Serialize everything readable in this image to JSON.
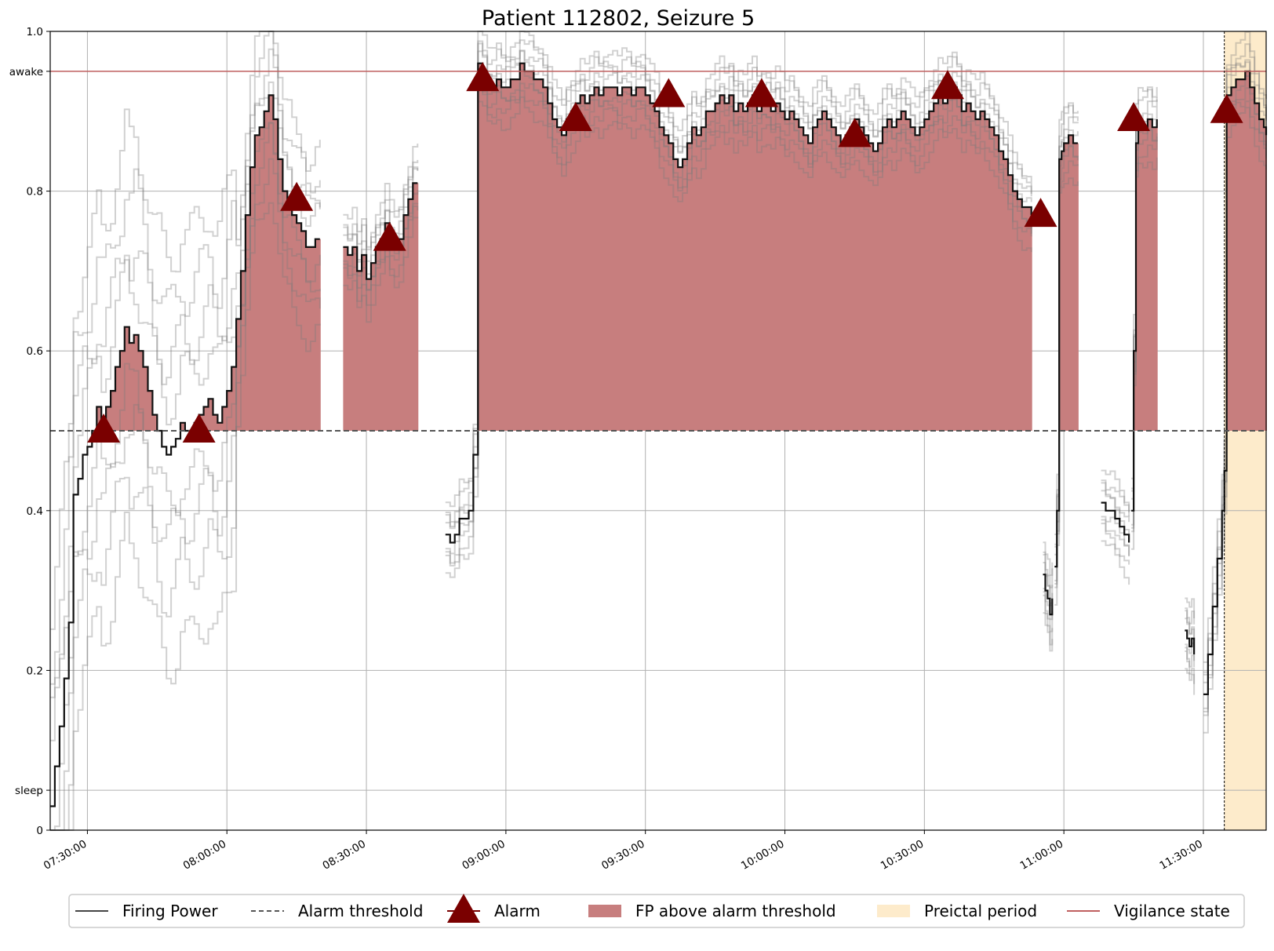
{
  "chart_data": {
    "type": "line",
    "title": "Patient 112802, Seizure 5",
    "xlabel": "",
    "ylabel": "",
    "x_start": "07:22:00",
    "x_end": "11:43:30",
    "ylim": [
      0,
      1.0
    ],
    "grid": true,
    "legend_placement": "bottom-center",
    "x_ticks": [
      "07:30:00",
      "08:00:00",
      "08:30:00",
      "09:00:00",
      "09:30:00",
      "10:00:00",
      "10:30:00",
      "11:00:00",
      "11:30:00"
    ],
    "y_ticks": [
      {
        "value": 0,
        "label": "0"
      },
      {
        "value": 0.05,
        "label": "sleep"
      },
      {
        "value": 0.2,
        "label": "0.2"
      },
      {
        "value": 0.4,
        "label": "0.4"
      },
      {
        "value": 0.6,
        "label": "0.6"
      },
      {
        "value": 0.8,
        "label": "0.8"
      },
      {
        "value": 0.95,
        "label": "awake"
      },
      {
        "value": 1.0,
        "label": "1.0"
      }
    ],
    "alarm_threshold": 0.5,
    "vigilance_state": [
      {
        "start": "07:22:00",
        "end": "11:43:30",
        "state": "awake"
      }
    ],
    "preictal_period": {
      "start": "11:34:30",
      "end": "11:43:30"
    },
    "firing_power_segments": [
      {
        "times": [
          "07:22:00",
          "07:23:00",
          "07:24:00",
          "07:25:00",
          "07:26:00",
          "07:27:00",
          "07:28:00",
          "07:29:00",
          "07:30:00",
          "07:31:00",
          "07:32:00",
          "07:33:00",
          "07:34:00",
          "07:35:00",
          "07:36:00",
          "07:37:00",
          "07:38:00",
          "07:39:00",
          "07:40:00",
          "07:41:00",
          "07:42:00",
          "07:43:00",
          "07:44:00",
          "07:45:00",
          "07:46:00",
          "07:47:00",
          "07:48:00",
          "07:49:00",
          "07:50:00",
          "07:51:00",
          "07:52:00",
          "07:53:00",
          "07:54:00",
          "07:55:00",
          "07:56:00",
          "07:57:00",
          "07:58:00",
          "07:59:00",
          "08:00:00",
          "08:01:00",
          "08:02:00",
          "08:03:00",
          "08:04:00",
          "08:05:00",
          "08:06:00",
          "08:07:00",
          "08:08:00",
          "08:09:00",
          "08:10:00",
          "08:11:00",
          "08:12:00",
          "08:13:00",
          "08:14:00",
          "08:15:00",
          "08:16:00",
          "08:17:00",
          "08:18:00",
          "08:19:00",
          "08:20:00"
        ],
        "values": [
          0.03,
          0.08,
          0.13,
          0.19,
          0.26,
          0.42,
          0.44,
          0.47,
          0.48,
          0.5,
          0.53,
          0.51,
          0.53,
          0.55,
          0.58,
          0.6,
          0.63,
          0.61,
          0.62,
          0.6,
          0.58,
          0.55,
          0.52,
          0.5,
          0.48,
          0.47,
          0.48,
          0.49,
          0.51,
          0.5,
          0.5,
          0.51,
          0.52,
          0.53,
          0.54,
          0.52,
          0.51,
          0.53,
          0.55,
          0.58,
          0.64,
          0.7,
          0.77,
          0.83,
          0.87,
          0.88,
          0.9,
          0.92,
          0.89,
          0.84,
          0.8,
          0.79,
          0.77,
          0.76,
          0.75,
          0.73,
          0.73,
          0.74,
          0.74
        ]
      },
      {
        "times": [
          "08:25:00",
          "08:26:00",
          "08:27:00",
          "08:28:00",
          "08:29:00",
          "08:30:00",
          "08:31:00",
          "08:32:00",
          "08:33:00",
          "08:34:00",
          "08:35:00",
          "08:36:00",
          "08:37:00",
          "08:38:00",
          "08:39:00",
          "08:40:00",
          "08:41:00"
        ],
        "values": [
          0.73,
          0.72,
          0.73,
          0.7,
          0.72,
          0.69,
          0.71,
          0.73,
          0.74,
          0.76,
          0.74,
          0.73,
          0.74,
          0.77,
          0.79,
          0.81,
          0.81
        ]
      },
      {
        "times": [
          "08:47:00",
          "08:48:00",
          "08:49:00",
          "08:50:00",
          "08:51:00",
          "08:52:00",
          "08:53:00",
          "08:54:00",
          "08:55:00",
          "08:56:00",
          "08:57:00",
          "08:58:00",
          "08:59:00",
          "09:00:00",
          "09:01:00",
          "09:02:00",
          "09:03:00",
          "09:04:00",
          "09:05:00",
          "09:06:00",
          "09:07:00",
          "09:08:00",
          "09:09:00",
          "09:10:00",
          "09:11:00",
          "09:12:00",
          "09:13:00",
          "09:14:00",
          "09:15:00",
          "09:16:00",
          "09:17:00",
          "09:18:00",
          "09:19:00",
          "09:20:00",
          "09:21:00",
          "09:22:00",
          "09:23:00",
          "09:24:00",
          "09:25:00",
          "09:26:00",
          "09:27:00",
          "09:28:00",
          "09:29:00",
          "09:30:00",
          "09:31:00",
          "09:32:00",
          "09:33:00",
          "09:34:00",
          "09:35:00",
          "09:36:00",
          "09:37:00",
          "09:38:00",
          "09:39:00",
          "09:40:00",
          "09:41:00",
          "09:42:00",
          "09:43:00",
          "09:44:00",
          "09:45:00",
          "09:46:00",
          "09:47:00",
          "09:48:00",
          "09:49:00",
          "09:50:00",
          "09:51:00",
          "09:52:00",
          "09:53:00",
          "09:54:00",
          "09:55:00",
          "09:56:00",
          "09:57:00",
          "09:58:00",
          "09:59:00",
          "10:00:00",
          "10:01:00",
          "10:02:00",
          "10:03:00",
          "10:04:00",
          "10:05:00",
          "10:06:00",
          "10:07:00",
          "10:08:00",
          "10:09:00",
          "10:10:00",
          "10:11:00",
          "10:12:00",
          "10:13:00",
          "10:14:00",
          "10:15:00",
          "10:16:00",
          "10:17:00",
          "10:18:00",
          "10:19:00",
          "10:20:00",
          "10:21:00",
          "10:22:00",
          "10:23:00",
          "10:24:00",
          "10:25:00",
          "10:26:00",
          "10:27:00",
          "10:28:00",
          "10:29:00",
          "10:30:00",
          "10:31:00",
          "10:32:00",
          "10:33:00",
          "10:34:00",
          "10:35:00",
          "10:36:00",
          "10:37:00",
          "10:38:00",
          "10:39:00",
          "10:40:00",
          "10:41:00",
          "10:42:00",
          "10:43:00",
          "10:44:00",
          "10:45:00",
          "10:46:00",
          "10:47:00",
          "10:48:00",
          "10:49:00",
          "10:50:00",
          "10:51:00",
          "10:52:00",
          "10:53:00"
        ],
        "values": [
          0.37,
          0.36,
          0.37,
          0.39,
          0.39,
          0.4,
          0.47,
          0.96,
          0.95,
          0.93,
          0.93,
          0.94,
          0.93,
          0.93,
          0.94,
          0.94,
          0.96,
          0.95,
          0.95,
          0.94,
          0.94,
          0.93,
          0.91,
          0.89,
          0.88,
          0.87,
          0.89,
          0.9,
          0.91,
          0.92,
          0.91,
          0.92,
          0.93,
          0.92,
          0.93,
          0.93,
          0.93,
          0.92,
          0.93,
          0.93,
          0.92,
          0.93,
          0.93,
          0.92,
          0.91,
          0.9,
          0.88,
          0.87,
          0.86,
          0.84,
          0.83,
          0.84,
          0.86,
          0.88,
          0.87,
          0.88,
          0.9,
          0.9,
          0.91,
          0.92,
          0.91,
          0.92,
          0.9,
          0.91,
          0.9,
          0.91,
          0.92,
          0.9,
          0.91,
          0.91,
          0.9,
          0.91,
          0.9,
          0.89,
          0.9,
          0.89,
          0.88,
          0.87,
          0.86,
          0.88,
          0.89,
          0.9,
          0.89,
          0.88,
          0.87,
          0.86,
          0.87,
          0.88,
          0.89,
          0.88,
          0.87,
          0.86,
          0.85,
          0.86,
          0.88,
          0.89,
          0.88,
          0.89,
          0.9,
          0.89,
          0.88,
          0.87,
          0.88,
          0.89,
          0.9,
          0.91,
          0.92,
          0.91,
          0.92,
          0.93,
          0.92,
          0.9,
          0.91,
          0.9,
          0.89,
          0.9,
          0.89,
          0.88,
          0.87,
          0.85,
          0.84,
          0.82,
          0.8,
          0.79,
          0.78,
          0.78,
          0.77
        ]
      },
      {
        "times": [
          "10:55:30",
          "10:56:00",
          "10:56:30",
          "10:57:00",
          "10:57:30"
        ],
        "values": [
          0.32,
          0.3,
          0.29,
          0.27,
          0.29
        ]
      },
      {
        "times": [
          "10:58:00",
          "10:58:30",
          "10:59:00",
          "10:59:30",
          "11:00:00",
          "11:01:00",
          "11:02:00",
          "11:03:00"
        ],
        "values": [
          0.33,
          0.4,
          0.84,
          0.85,
          0.86,
          0.87,
          0.86,
          0.86
        ]
      },
      {
        "times": [
          "11:08:00",
          "11:09:00",
          "11:10:00",
          "11:11:00",
          "11:12:00",
          "11:13:00",
          "11:14:00"
        ],
        "values": [
          0.41,
          0.4,
          0.4,
          0.39,
          0.38,
          0.37,
          0.36
        ]
      },
      {
        "times": [
          "11:14:30",
          "11:15:00",
          "11:15:30",
          "11:16:00",
          "11:17:00",
          "11:18:00",
          "11:19:00",
          "11:20:00"
        ],
        "values": [
          0.4,
          0.6,
          0.86,
          0.88,
          0.88,
          0.89,
          0.88,
          0.89
        ]
      },
      {
        "times": [
          "11:26:00",
          "11:26:30",
          "11:27:00",
          "11:27:30",
          "11:28:00"
        ],
        "values": [
          0.25,
          0.24,
          0.23,
          0.24,
          0.22
        ]
      },
      {
        "times": [
          "11:30:00",
          "11:31:00",
          "11:32:00",
          "11:33:00",
          "11:34:00",
          "11:34:30",
          "11:35:00",
          "11:36:00",
          "11:37:00",
          "11:38:00",
          "11:39:00",
          "11:40:00",
          "11:41:00",
          "11:42:00",
          "11:43:00",
          "11:43:30"
        ],
        "values": [
          0.17,
          0.22,
          0.28,
          0.34,
          0.4,
          0.45,
          0.92,
          0.93,
          0.94,
          0.94,
          0.95,
          0.93,
          0.91,
          0.89,
          0.88,
          0.87
        ]
      }
    ],
    "alarms": [
      {
        "time": "07:33:30",
        "value": 0.5
      },
      {
        "time": "07:54:00",
        "value": 0.5
      },
      {
        "time": "08:15:00",
        "value": 0.79
      },
      {
        "time": "08:35:00",
        "value": 0.74
      },
      {
        "time": "08:55:00",
        "value": 0.94
      },
      {
        "time": "09:15:00",
        "value": 0.89
      },
      {
        "time": "09:35:00",
        "value": 0.92
      },
      {
        "time": "09:55:00",
        "value": 0.92
      },
      {
        "time": "10:15:00",
        "value": 0.87
      },
      {
        "time": "10:35:00",
        "value": 0.93
      },
      {
        "time": "10:55:00",
        "value": 0.77
      },
      {
        "time": "11:15:00",
        "value": 0.89
      },
      {
        "time": "11:35:00",
        "value": 0.9
      }
    ],
    "colors": {
      "firing_power": "#111111",
      "ensemble": "#7a7a7a",
      "threshold": "#555555",
      "alarm": "#7a0000",
      "fp_fill": "#c77e7e",
      "preictal": "#fdebcb",
      "vigilance": "#c06060",
      "grid": "#b0b0b0"
    },
    "legend": [
      {
        "key": "firing_power",
        "label": "Firing Power"
      },
      {
        "key": "threshold",
        "label": "Alarm threshold"
      },
      {
        "key": "alarm",
        "label": "Alarm"
      },
      {
        "key": "fp_fill",
        "label": "FP above alarm threshold"
      },
      {
        "key": "preictal",
        "label": "Preictal period"
      },
      {
        "key": "vigilance",
        "label": "Vigilance state"
      }
    ]
  }
}
